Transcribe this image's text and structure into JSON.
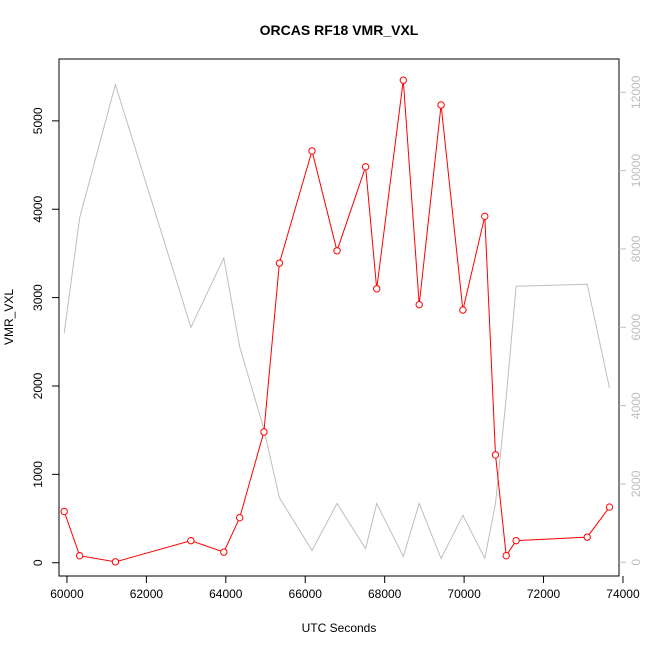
{
  "chart_data": {
    "type": "line",
    "title": "ORCAS RF18 VMR_VXL",
    "xlabel": "UTC Seconds",
    "ylabel": "VMR_VXL",
    "xlim": [
      59800,
      73900
    ],
    "ylim": [
      -150,
      5700
    ],
    "y2lim": [
      -350,
      12850
    ],
    "x_ticks": [
      60000,
      62000,
      64000,
      66000,
      68000,
      70000,
      72000,
      74000
    ],
    "y_ticks": [
      0,
      1000,
      2000,
      3000,
      4000,
      5000
    ],
    "y2_ticks": [
      0,
      2000,
      4000,
      6000,
      8000,
      10000,
      12000
    ],
    "grid": false,
    "colors": {
      "primary": "#ff0000",
      "secondary": "#bebebe",
      "axis": "#000000",
      "secondary_axis": "#bebebe"
    },
    "series": [
      {
        "axis": "left",
        "marker": "open-circle",
        "x": [
          59930,
          60320,
          61220,
          63120,
          63950,
          64350,
          64960,
          65350,
          66170,
          66800,
          67520,
          67800,
          68470,
          68870,
          69420,
          69970,
          70520,
          70790,
          71060,
          71310,
          73100,
          73660
        ],
        "values": [
          580,
          80,
          10,
          250,
          120,
          510,
          1480,
          3390,
          4660,
          3530,
          4480,
          3100,
          5460,
          2920,
          5180,
          2860,
          3920,
          1220,
          80,
          250,
          290,
          630
        ]
      },
      {
        "axis": "right",
        "marker": "none",
        "x": [
          59930,
          60320,
          61220,
          63120,
          63950,
          64350,
          64960,
          65350,
          66170,
          66800,
          67520,
          67800,
          68470,
          68870,
          69420,
          69970,
          70520,
          70790,
          71060,
          71310,
          73100,
          73660
        ],
        "values": [
          5850,
          8800,
          12200,
          6000,
          7770,
          5500,
          3400,
          1650,
          300,
          1500,
          350,
          1500,
          150,
          1500,
          100,
          1200,
          100,
          1500,
          4200,
          7050,
          7100,
          4450
        ]
      }
    ]
  }
}
